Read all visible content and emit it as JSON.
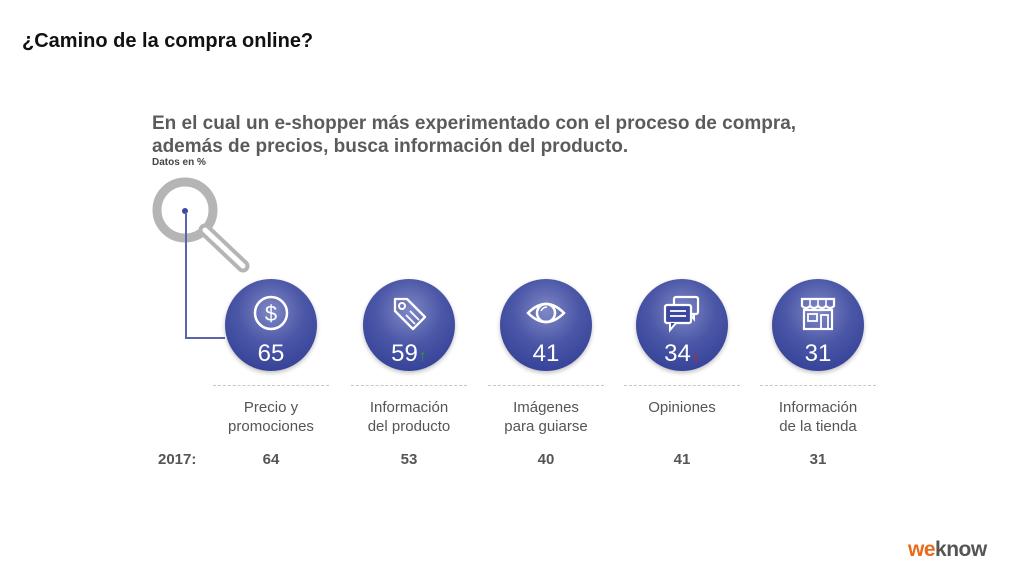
{
  "page": {
    "title": "¿Camino de la compra online?",
    "headline_line1": "En el cual un e-shopper más experimentado con el proceso de compra,",
    "headline_line2": "además de precios, busca información del producto.",
    "units": "Datos en %",
    "logo_first": "we",
    "logo_rest": "know"
  },
  "colors": {
    "circle_fill": "#3b47a0",
    "up_arrow": "#2e9a3a",
    "down_arrow": "#d21f1f",
    "logo_accent": "#e86a1a",
    "text_gray": "#555555"
  },
  "chart_data": {
    "type": "table",
    "categories": [
      "Precio y\npromociones",
      "Información\ndel producto",
      "Imágenes\npara guiarse",
      "Opiniones",
      "Información\nde la tienda"
    ],
    "icons": [
      "dollar-icon",
      "price-tag-icon",
      "eye-icon",
      "chat-bubbles-icon",
      "store-icon"
    ],
    "series": [
      {
        "name": "",
        "values": [
          65,
          59,
          41,
          34,
          31
        ],
        "trend": [
          "",
          "up",
          "",
          "down",
          ""
        ]
      },
      {
        "name": "2017:",
        "values": [
          64,
          53,
          40,
          41,
          31
        ]
      }
    ]
  }
}
